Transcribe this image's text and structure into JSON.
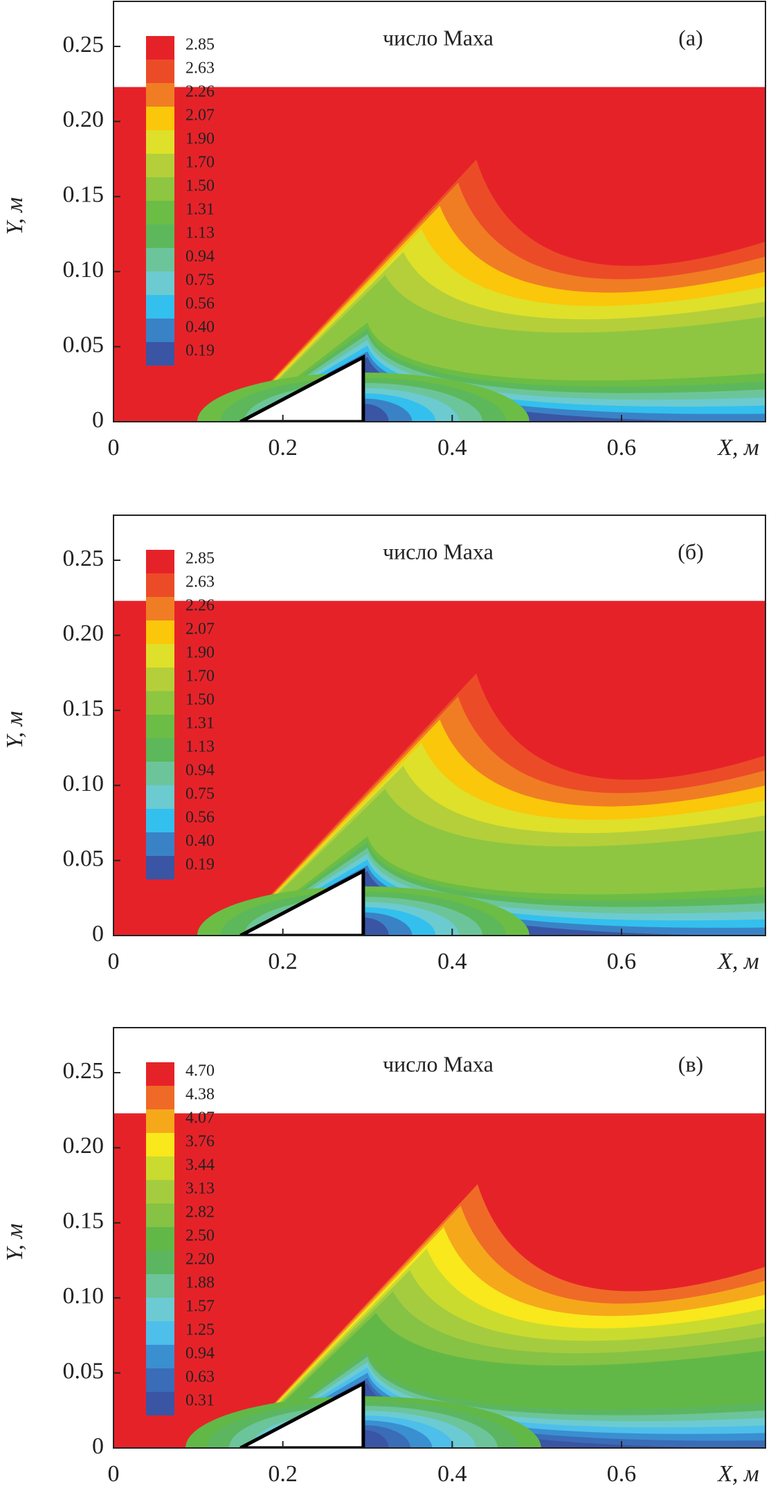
{
  "chart_data": [
    {
      "type": "contour",
      "title": "число Маха",
      "panel_label": "(а)",
      "xlabel": "X, м",
      "ylabel": "Y, м",
      "xlim": [
        0,
        0.77
      ],
      "ylim": [
        0,
        0.28
      ],
      "xticks": [
        0,
        0.2,
        0.4,
        0.6
      ],
      "yticks": [
        0,
        0.05,
        {
          "value": 0.1,
          "label": "0.10"
        },
        0.15,
        {
          "value": 0.2,
          "label": "0.20"
        },
        0.25
      ],
      "levels": [
        2.85,
        2.63,
        2.26,
        2.07,
        {
          "value": 1.9,
          "label": "1.90"
        },
        {
          "value": 1.7,
          "label": "1.70"
        },
        {
          "value": 1.5,
          "label": "1.50"
        },
        1.31,
        1.13,
        0.94,
        0.75,
        0.56,
        {
          "value": 0.4,
          "label": "0.40"
        },
        0.19
      ],
      "colors": [
        "#e62229",
        "#ec4b28",
        "#f07d24",
        "#fac70a",
        "#dfe02a",
        "#b4cf3a",
        "#8ec641",
        "#6cbd45",
        "#5cb85a",
        "#6cc59a",
        "#6ccbd0",
        "#33c0ee",
        "#3a82c6",
        "#3a55a4"
      ]
    },
    {
      "type": "contour",
      "title": "число Маха",
      "panel_label": "(б)",
      "xlabel": "X, м",
      "ylabel": "Y, м",
      "xlim": [
        0,
        0.77
      ],
      "ylim": [
        0,
        0.28
      ],
      "xticks": [
        0,
        0.2,
        0.4,
        0.6
      ],
      "yticks": [
        0,
        0.05,
        {
          "value": 0.1,
          "label": "0.10"
        },
        0.15,
        {
          "value": 0.2,
          "label": "0.20"
        },
        0.25
      ],
      "levels": [
        2.85,
        2.63,
        2.26,
        2.07,
        {
          "value": 1.9,
          "label": "1.90"
        },
        {
          "value": 1.7,
          "label": "1.70"
        },
        {
          "value": 1.5,
          "label": "1.50"
        },
        1.31,
        1.13,
        0.94,
        0.75,
        0.56,
        {
          "value": 0.4,
          "label": "0.40"
        },
        0.19
      ],
      "colors": [
        "#e62229",
        "#ec4b28",
        "#f07d24",
        "#fac70a",
        "#dfe02a",
        "#b4cf3a",
        "#8ec641",
        "#6cbd45",
        "#5cb85a",
        "#6cc59a",
        "#6ccbd0",
        "#33c0ee",
        "#3a82c6",
        "#3a55a4"
      ]
    },
    {
      "type": "contour",
      "title": "число Маха",
      "panel_label": "(в)",
      "xlabel": "X, м",
      "ylabel": "Y, м",
      "xlim": [
        0,
        0.77
      ],
      "ylim": [
        0,
        0.28
      ],
      "xticks": [
        0,
        0.2,
        0.4,
        0.6
      ],
      "yticks": [
        0,
        0.05,
        {
          "value": 0.1,
          "label": "0.10"
        },
        0.15,
        {
          "value": 0.2,
          "label": "0.20"
        },
        0.25
      ],
      "levels": [
        {
          "value": 4.7,
          "label": "4.70"
        },
        4.38,
        4.07,
        3.76,
        3.44,
        3.13,
        2.82,
        {
          "value": 2.5,
          "label": "2.50"
        },
        {
          "value": 2.2,
          "label": "2.20"
        },
        1.88,
        1.57,
        1.25,
        0.94,
        0.63,
        0.31
      ],
      "colors": [
        "#e62229",
        "#ef6a27",
        "#f6a81b",
        "#f8e81c",
        "#cadb2f",
        "#a5cc3f",
        "#86c244",
        "#62b847",
        "#5cb660",
        "#6cc49a",
        "#6ccbd2",
        "#4dbfea",
        "#3a8fd0",
        "#3a6cb8",
        "#3a55a4"
      ]
    }
  ]
}
